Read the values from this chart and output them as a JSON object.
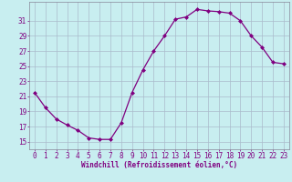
{
  "x": [
    0,
    1,
    2,
    3,
    4,
    5,
    6,
    7,
    8,
    9,
    10,
    11,
    12,
    13,
    14,
    15,
    16,
    17,
    18,
    19,
    20,
    21,
    22,
    23
  ],
  "y": [
    21.5,
    19.5,
    18.0,
    17.2,
    16.5,
    15.5,
    15.3,
    15.3,
    17.5,
    21.5,
    24.5,
    27.0,
    29.0,
    31.2,
    31.5,
    32.5,
    32.3,
    32.2,
    32.0,
    31.0,
    29.0,
    27.5,
    25.5,
    25.3
  ],
  "line_color": "#800080",
  "marker": "D",
  "marker_size": 2.0,
  "bg_color": "#c8eef0",
  "grid_color": "#aabbcc",
  "xlabel": "Windchill (Refroidissement éolien,°C)",
  "ylabel": "",
  "yticks": [
    15,
    17,
    19,
    21,
    23,
    25,
    27,
    29,
    31
  ],
  "xticks": [
    0,
    1,
    2,
    3,
    4,
    5,
    6,
    7,
    8,
    9,
    10,
    11,
    12,
    13,
    14,
    15,
    16,
    17,
    18,
    19,
    20,
    21,
    22,
    23
  ],
  "ylim": [
    14.0,
    33.5
  ],
  "xlim": [
    -0.5,
    23.5
  ],
  "xlabel_color": "#800080",
  "tick_color": "#800080",
  "tick_fontsize": 5.5,
  "xlabel_fontsize": 5.5
}
